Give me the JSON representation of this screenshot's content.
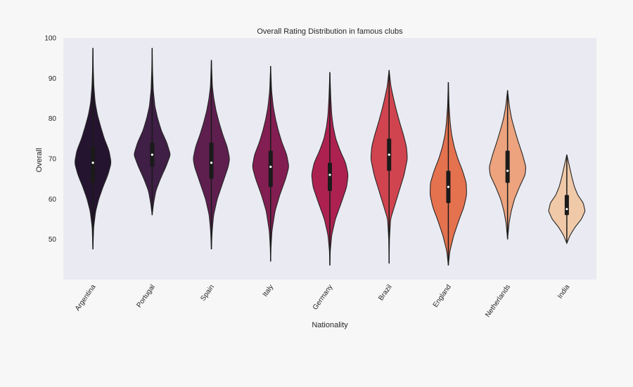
{
  "chart_data": {
    "type": "violin",
    "title": "Overall Rating Distribution in famous clubs",
    "xlabel": "Nationality",
    "ylabel": "Overall",
    "ylim": [
      40,
      100
    ],
    "yticks": [
      50,
      60,
      70,
      80,
      90,
      100
    ],
    "grid": false,
    "background": "#eaeaf2",
    "categories": [
      {
        "name": "Argentina",
        "color": "#25142f",
        "min": 47.5,
        "max": 97.5,
        "q1": 64,
        "median": 69,
        "q3": 73,
        "profile": [
          [
            47.5,
            0
          ],
          [
            53,
            0.04
          ],
          [
            57,
            0.15
          ],
          [
            60,
            0.32
          ],
          [
            63,
            0.55
          ],
          [
            66,
            0.82
          ],
          [
            69,
            1.0
          ],
          [
            72,
            0.88
          ],
          [
            75,
            0.62
          ],
          [
            78,
            0.42
          ],
          [
            81,
            0.24
          ],
          [
            84,
            0.12
          ],
          [
            88,
            0.05
          ],
          [
            92,
            0.02
          ],
          [
            97.5,
            0
          ]
        ]
      },
      {
        "name": "Portugal",
        "color": "#3f1f46",
        "min": 56,
        "max": 97.5,
        "q1": 68,
        "median": 71,
        "q3": 74,
        "profile": [
          [
            56,
            0
          ],
          [
            59,
            0.08
          ],
          [
            62,
            0.2
          ],
          [
            65,
            0.45
          ],
          [
            68,
            0.75
          ],
          [
            71,
            1.0
          ],
          [
            74,
            0.8
          ],
          [
            77,
            0.5
          ],
          [
            80,
            0.3
          ],
          [
            83,
            0.15
          ],
          [
            87,
            0.06
          ],
          [
            92,
            0.02
          ],
          [
            97.5,
            0
          ]
        ]
      },
      {
        "name": "Spain",
        "color": "#5e1f4f",
        "min": 47.5,
        "max": 94.5,
        "q1": 65,
        "median": 69,
        "q3": 74,
        "profile": [
          [
            47.5,
            0
          ],
          [
            52,
            0.04
          ],
          [
            56,
            0.12
          ],
          [
            60,
            0.32
          ],
          [
            64,
            0.62
          ],
          [
            68,
            0.92
          ],
          [
            70,
            1.0
          ],
          [
            73,
            0.86
          ],
          [
            76,
            0.62
          ],
          [
            79,
            0.42
          ],
          [
            82,
            0.25
          ],
          [
            85,
            0.13
          ],
          [
            88,
            0.05
          ],
          [
            94.5,
            0
          ]
        ]
      },
      {
        "name": "Italy",
        "color": "#831e52",
        "min": 44.5,
        "max": 93,
        "q1": 63,
        "median": 68,
        "q3": 72,
        "profile": [
          [
            44.5,
            0
          ],
          [
            48,
            0.02
          ],
          [
            52,
            0.07
          ],
          [
            57,
            0.24
          ],
          [
            61,
            0.5
          ],
          [
            65,
            0.82
          ],
          [
            68,
            1.0
          ],
          [
            71,
            0.88
          ],
          [
            74,
            0.62
          ],
          [
            77,
            0.42
          ],
          [
            80,
            0.26
          ],
          [
            83,
            0.14
          ],
          [
            87,
            0.05
          ],
          [
            93,
            0
          ]
        ]
      },
      {
        "name": "Germany",
        "color": "#ad2150",
        "min": 43.5,
        "max": 91.5,
        "q1": 62,
        "median": 66,
        "q3": 69,
        "profile": [
          [
            43.5,
            0
          ],
          [
            47,
            0.02
          ],
          [
            51,
            0.1
          ],
          [
            55,
            0.3
          ],
          [
            59,
            0.62
          ],
          [
            63,
            0.92
          ],
          [
            66,
            1.0
          ],
          [
            69,
            0.86
          ],
          [
            72,
            0.56
          ],
          [
            75,
            0.32
          ],
          [
            78,
            0.18
          ],
          [
            81,
            0.1
          ],
          [
            85,
            0.05
          ],
          [
            91.5,
            0
          ]
        ]
      },
      {
        "name": "Brazil",
        "color": "#d0444f",
        "min": 44,
        "max": 92,
        "q1": 67,
        "median": 71,
        "q3": 75,
        "profile": [
          [
            44,
            0
          ],
          [
            50,
            0.02
          ],
          [
            55,
            0.08
          ],
          [
            58,
            0.28
          ],
          [
            62,
            0.55
          ],
          [
            66,
            0.82
          ],
          [
            70,
            1.0
          ],
          [
            73,
            0.95
          ],
          [
            76,
            0.78
          ],
          [
            79,
            0.58
          ],
          [
            82,
            0.4
          ],
          [
            85,
            0.24
          ],
          [
            88,
            0.1
          ],
          [
            92,
            0
          ]
        ]
      },
      {
        "name": "England",
        "color": "#e4724f",
        "min": 43.5,
        "max": 89,
        "q1": 59,
        "median": 63,
        "q3": 67,
        "profile": [
          [
            43.5,
            0
          ],
          [
            47,
            0.08
          ],
          [
            51,
            0.3
          ],
          [
            55,
            0.6
          ],
          [
            58,
            0.85
          ],
          [
            61,
            1.0
          ],
          [
            64,
            0.98
          ],
          [
            67,
            0.78
          ],
          [
            70,
            0.52
          ],
          [
            73,
            0.32
          ],
          [
            76,
            0.18
          ],
          [
            79,
            0.1
          ],
          [
            83,
            0.04
          ],
          [
            89,
            0
          ]
        ]
      },
      {
        "name": "Netherlands",
        "color": "#eca37e",
        "min": 50,
        "max": 87,
        "q1": 64,
        "median": 67,
        "q3": 72,
        "profile": [
          [
            50,
            0
          ],
          [
            54,
            0.08
          ],
          [
            57,
            0.2
          ],
          [
            60,
            0.38
          ],
          [
            63,
            0.65
          ],
          [
            66,
            0.96
          ],
          [
            68,
            1.0
          ],
          [
            71,
            0.82
          ],
          [
            74,
            0.6
          ],
          [
            77,
            0.4
          ],
          [
            80,
            0.22
          ],
          [
            83,
            0.1
          ],
          [
            87,
            0
          ]
        ]
      },
      {
        "name": "India",
        "color": "#f0c9a8",
        "min": 49,
        "max": 71,
        "q1": 56,
        "median": 57.5,
        "q3": 61,
        "profile": [
          [
            49,
            0
          ],
          [
            51,
            0.18
          ],
          [
            53,
            0.45
          ],
          [
            55,
            0.8
          ],
          [
            57,
            1.0
          ],
          [
            59,
            0.9
          ],
          [
            61,
            0.6
          ],
          [
            63,
            0.42
          ],
          [
            65,
            0.3
          ],
          [
            67,
            0.2
          ],
          [
            69,
            0.1
          ],
          [
            71,
            0
          ]
        ]
      }
    ]
  }
}
